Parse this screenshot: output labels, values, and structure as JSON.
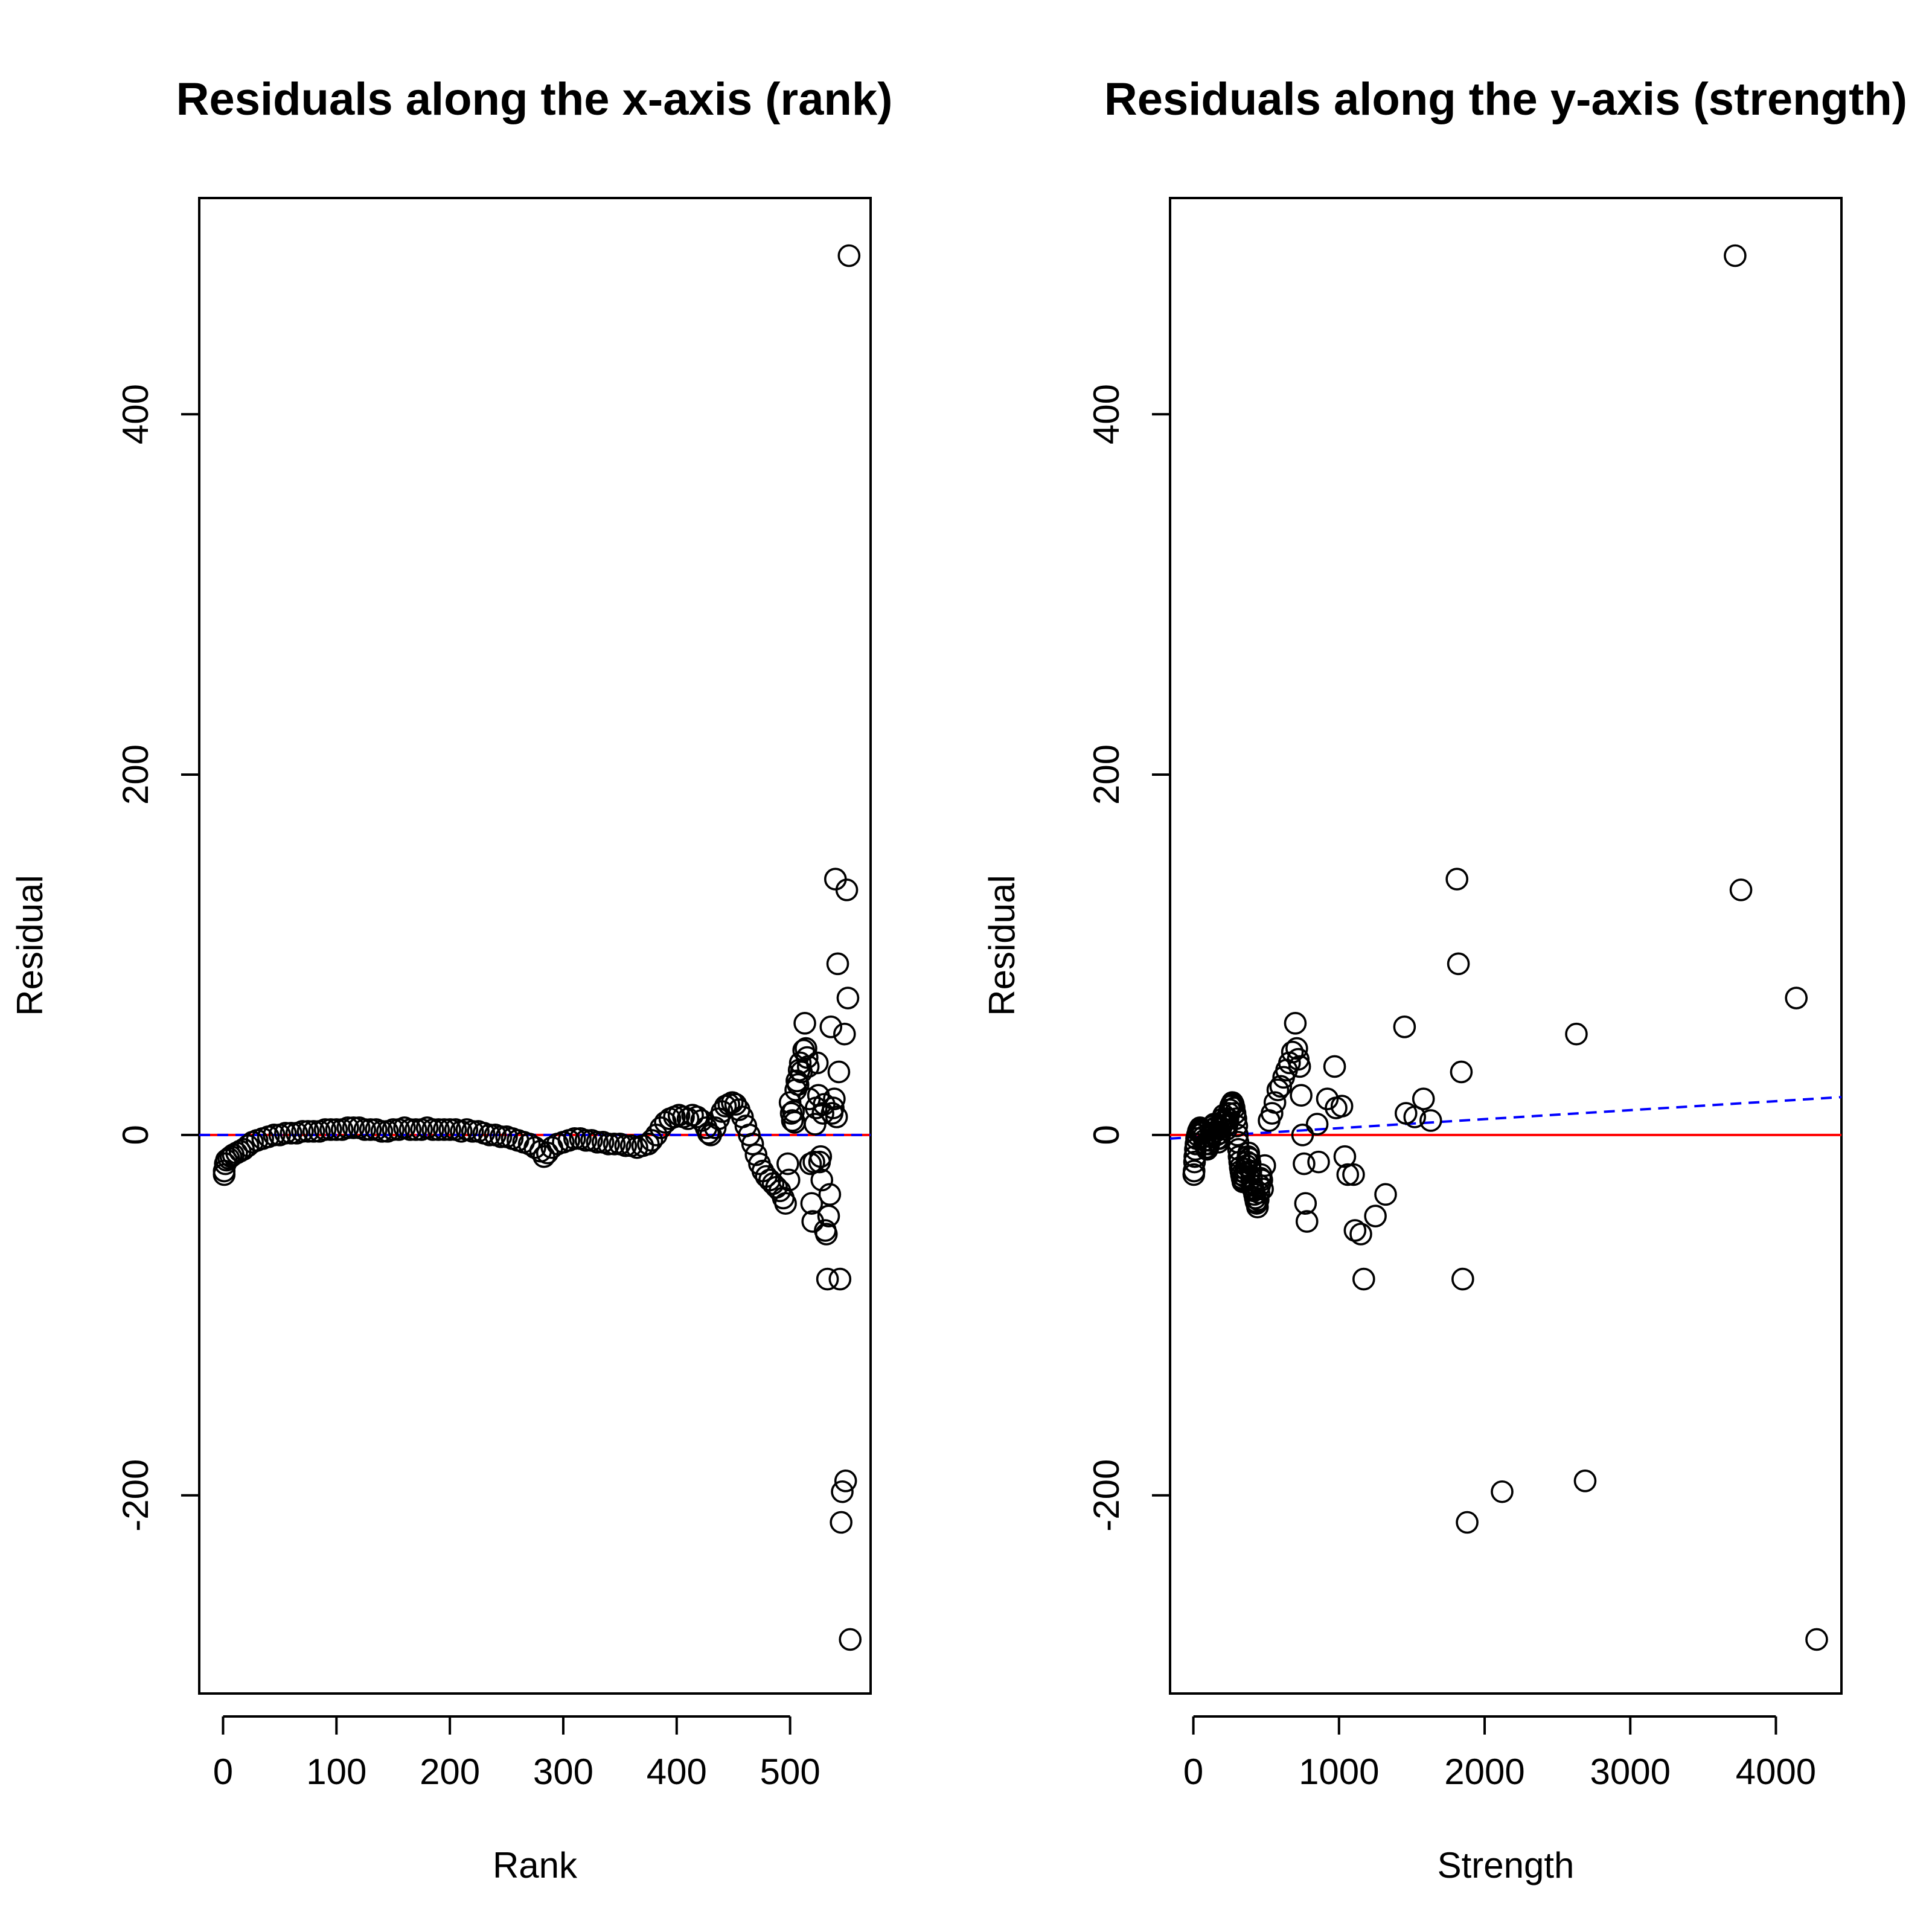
{
  "chart_data": [
    {
      "type": "scatter",
      "title": "Residuals along the x-axis (rank)",
      "xlabel": "Rank",
      "ylabel": "Residual",
      "xlim": [
        -21,
        571
      ],
      "ylim": [
        -310,
        520
      ],
      "xticks": [
        0,
        100,
        200,
        300,
        400,
        500
      ],
      "yticks": [
        -200,
        0,
        200,
        400
      ],
      "grid": false,
      "reference_line": {
        "y": 0,
        "color": "#ff0000",
        "style": "solid"
      },
      "fit_line": {
        "color": "#0000ff",
        "style": "dashed",
        "points": [
          [
            -21,
            0
          ],
          [
            571,
            0
          ]
        ]
      },
      "curve_points": [
        [
          1,
          -22
        ],
        [
          1,
          -20
        ],
        [
          2,
          -16
        ],
        [
          3,
          -14
        ],
        [
          5,
          -13
        ],
        [
          7,
          -12
        ],
        [
          9,
          -11
        ],
        [
          12,
          -10
        ],
        [
          15,
          -9
        ],
        [
          18,
          -8
        ],
        [
          22,
          -6
        ],
        [
          26,
          -4
        ],
        [
          30,
          -3
        ],
        [
          35,
          -2
        ],
        [
          40,
          -1
        ],
        [
          45,
          0
        ],
        [
          50,
          0
        ],
        [
          55,
          1
        ],
        [
          60,
          1
        ],
        [
          65,
          1
        ],
        [
          70,
          2
        ],
        [
          75,
          2
        ],
        [
          80,
          2
        ],
        [
          85,
          2
        ],
        [
          90,
          3
        ],
        [
          95,
          3
        ],
        [
          100,
          3
        ],
        [
          105,
          3
        ],
        [
          110,
          4
        ],
        [
          115,
          4
        ],
        [
          120,
          4
        ],
        [
          125,
          3
        ],
        [
          130,
          3
        ],
        [
          135,
          3
        ],
        [
          140,
          2
        ],
        [
          145,
          2
        ],
        [
          150,
          3
        ],
        [
          155,
          3
        ],
        [
          160,
          4
        ],
        [
          165,
          3
        ],
        [
          170,
          3
        ],
        [
          175,
          3
        ],
        [
          180,
          4
        ],
        [
          185,
          3
        ],
        [
          190,
          3
        ],
        [
          195,
          3
        ],
        [
          200,
          3
        ],
        [
          205,
          3
        ],
        [
          210,
          2
        ],
        [
          215,
          3
        ],
        [
          220,
          2
        ],
        [
          225,
          2
        ],
        [
          230,
          1
        ],
        [
          235,
          0
        ],
        [
          240,
          0
        ],
        [
          245,
          -1
        ],
        [
          250,
          -1
        ],
        [
          255,
          -2
        ],
        [
          260,
          -3
        ],
        [
          265,
          -4
        ],
        [
          270,
          -5
        ],
        [
          275,
          -7
        ],
        [
          280,
          -9
        ],
        [
          283,
          -12
        ],
        [
          286,
          -10
        ],
        [
          290,
          -7
        ],
        [
          295,
          -5
        ],
        [
          300,
          -4
        ],
        [
          305,
          -3
        ],
        [
          310,
          -2
        ],
        [
          315,
          -2
        ],
        [
          320,
          -3
        ],
        [
          325,
          -3
        ],
        [
          330,
          -4
        ],
        [
          335,
          -4
        ],
        [
          340,
          -5
        ],
        [
          345,
          -5
        ],
        [
          350,
          -5
        ],
        [
          355,
          -6
        ],
        [
          360,
          -6
        ],
        [
          365,
          -7
        ],
        [
          370,
          -6
        ],
        [
          375,
          -5
        ],
        [
          378,
          -3
        ],
        [
          382,
          0
        ],
        [
          386,
          4
        ],
        [
          390,
          7
        ],
        [
          394,
          9
        ],
        [
          398,
          10
        ],
        [
          402,
          11
        ],
        [
          406,
          10
        ],
        [
          410,
          9
        ],
        [
          414,
          11
        ],
        [
          418,
          10
        ],
        [
          422,
          8
        ],
        [
          426,
          4
        ],
        [
          428,
          1
        ],
        [
          430,
          0
        ],
        [
          434,
          4
        ],
        [
          437,
          9
        ],
        [
          440,
          13
        ],
        [
          443,
          16
        ],
        [
          446,
          17
        ],
        [
          449,
          18
        ],
        [
          452,
          17
        ],
        [
          455,
          14
        ],
        [
          458,
          10
        ],
        [
          461,
          5
        ],
        [
          464,
          0
        ],
        [
          467,
          -5
        ],
        [
          470,
          -11
        ],
        [
          473,
          -16
        ],
        [
          476,
          -20
        ],
        [
          479,
          -23
        ],
        [
          482,
          -25
        ],
        [
          485,
          -27
        ],
        [
          488,
          -29
        ],
        [
          491,
          -31
        ],
        [
          494,
          -35
        ],
        [
          496,
          -38
        ]
      ],
      "scatter_points": [
        [
          498,
          -16
        ],
        [
          499,
          -25
        ],
        [
          500,
          18
        ],
        [
          501,
          12
        ],
        [
          502,
          8
        ],
        [
          503,
          13
        ],
        [
          504,
          7
        ],
        [
          505,
          25
        ],
        [
          506,
          30
        ],
        [
          507,
          28
        ],
        [
          508,
          36
        ],
        [
          509,
          40
        ],
        [
          510,
          35
        ],
        [
          512,
          47
        ],
        [
          513,
          62
        ],
        [
          514,
          48
        ],
        [
          515,
          43
        ],
        [
          516,
          38
        ],
        [
          517,
          20
        ],
        [
          518,
          -16
        ],
        [
          519,
          -38
        ],
        [
          520,
          -48
        ],
        [
          521,
          -15
        ],
        [
          522,
          6
        ],
        [
          523,
          15
        ],
        [
          524,
          40
        ],
        [
          525,
          22
        ],
        [
          526,
          -15
        ],
        [
          527,
          -12
        ],
        [
          528,
          -25
        ],
        [
          529,
          12
        ],
        [
          530,
          17
        ],
        [
          531,
          -53
        ],
        [
          532,
          -55
        ],
        [
          533,
          -80
        ],
        [
          534,
          -45
        ],
        [
          535,
          -33
        ],
        [
          536,
          60
        ],
        [
          537,
          12
        ],
        [
          538,
          15
        ],
        [
          539,
          20
        ],
        [
          540,
          142
        ],
        [
          541,
          10
        ],
        [
          542,
          95
        ],
        [
          543,
          35
        ],
        [
          544,
          -80
        ],
        [
          545,
          -215
        ],
        [
          546,
          -198
        ],
        [
          548,
          56
        ],
        [
          549,
          -192
        ],
        [
          550,
          136
        ],
        [
          551,
          76
        ],
        [
          552,
          488
        ],
        [
          553,
          -280
        ]
      ]
    },
    {
      "type": "scatter",
      "title": "Residuals along the y-axis (strength)",
      "xlabel": "Strength",
      "ylabel": "Residual",
      "xlim": [
        -160,
        4450
      ],
      "ylim": [
        -310,
        520
      ],
      "xticks": [
        0,
        1000,
        2000,
        3000,
        4000
      ],
      "yticks": [
        -200,
        0,
        200,
        400
      ],
      "grid": false,
      "reference_line": {
        "y": 0,
        "color": "#ff0000",
        "style": "solid"
      },
      "fit_line": {
        "color": "#0000ff",
        "style": "dashed",
        "points": [
          [
            -160,
            -2
          ],
          [
            4450,
            21
          ]
        ]
      },
      "points": [
        [
          3,
          -22
        ],
        [
          5,
          -20
        ],
        [
          8,
          -15
        ],
        [
          10,
          -12
        ],
        [
          14,
          -8
        ],
        [
          18,
          -5
        ],
        [
          22,
          -2
        ],
        [
          28,
          0
        ],
        [
          34,
          2
        ],
        [
          40,
          3
        ],
        [
          46,
          4
        ],
        [
          52,
          3
        ],
        [
          58,
          2
        ],
        [
          64,
          1
        ],
        [
          70,
          -1
        ],
        [
          76,
          -3
        ],
        [
          82,
          -5
        ],
        [
          88,
          -7
        ],
        [
          94,
          -8
        ],
        [
          100,
          -7
        ],
        [
          106,
          -5
        ],
        [
          112,
          -3
        ],
        [
          118,
          -1
        ],
        [
          124,
          1
        ],
        [
          130,
          3
        ],
        [
          136,
          5
        ],
        [
          142,
          6
        ],
        [
          148,
          4
        ],
        [
          154,
          2
        ],
        [
          160,
          0
        ],
        [
          166,
          -2
        ],
        [
          172,
          -4
        ],
        [
          178,
          -2
        ],
        [
          184,
          1
        ],
        [
          190,
          4
        ],
        [
          196,
          7
        ],
        [
          202,
          9
        ],
        [
          208,
          11
        ],
        [
          214,
          8
        ],
        [
          220,
          5
        ],
        [
          226,
          3
        ],
        [
          232,
          6
        ],
        [
          238,
          9
        ],
        [
          244,
          12
        ],
        [
          250,
          14
        ],
        [
          256,
          16
        ],
        [
          262,
          17
        ],
        [
          268,
          18
        ],
        [
          274,
          17
        ],
        [
          280,
          15
        ],
        [
          286,
          12
        ],
        [
          292,
          9
        ],
        [
          298,
          5
        ],
        [
          302,
          0
        ],
        [
          306,
          -4
        ],
        [
          310,
          -8
        ],
        [
          314,
          -12
        ],
        [
          318,
          -15
        ],
        [
          322,
          -18
        ],
        [
          326,
          -20
        ],
        [
          330,
          -22
        ],
        [
          335,
          -24
        ],
        [
          340,
          -26
        ],
        [
          345,
          -25
        ],
        [
          350,
          -23
        ],
        [
          355,
          -21
        ],
        [
          360,
          -19
        ],
        [
          365,
          -17
        ],
        [
          370,
          -15
        ],
        [
          375,
          -12
        ],
        [
          380,
          -10
        ],
        [
          385,
          -13
        ],
        [
          390,
          -16
        ],
        [
          395,
          -20
        ],
        [
          400,
          -24
        ],
        [
          405,
          -28
        ],
        [
          410,
          -30
        ],
        [
          415,
          -31
        ],
        [
          420,
          -33
        ],
        [
          425,
          -35
        ],
        [
          430,
          -37
        ],
        [
          435,
          -38
        ],
        [
          440,
          -40
        ],
        [
          445,
          -36
        ],
        [
          450,
          -32
        ],
        [
          455,
          -28
        ],
        [
          460,
          -24
        ],
        [
          465,
          -22
        ],
        [
          470,
          -25
        ],
        [
          475,
          -30
        ],
        [
          490,
          -17
        ],
        [
          520,
          8
        ],
        [
          540,
          12
        ],
        [
          560,
          18
        ],
        [
          580,
          25
        ],
        [
          600,
          27
        ],
        [
          620,
          32
        ],
        [
          640,
          36
        ],
        [
          660,
          40
        ],
        [
          680,
          46
        ],
        [
          700,
          62
        ],
        [
          710,
          48
        ],
        [
          720,
          42
        ],
        [
          730,
          38
        ],
        [
          740,
          22
        ],
        [
          750,
          0
        ],
        [
          760,
          -16
        ],
        [
          770,
          -38
        ],
        [
          780,
          -48
        ],
        [
          850,
          6
        ],
        [
          860,
          -15
        ],
        [
          920,
          20
        ],
        [
          970,
          38
        ],
        [
          980,
          15
        ],
        [
          1020,
          16
        ],
        [
          1040,
          -12
        ],
        [
          1060,
          -22
        ],
        [
          1100,
          -22
        ],
        [
          1110,
          -53
        ],
        [
          1150,
          -55
        ],
        [
          1170,
          -80
        ],
        [
          1250,
          -45
        ],
        [
          1320,
          -33
        ],
        [
          1450,
          60
        ],
        [
          1460,
          12
        ],
        [
          1520,
          10
        ],
        [
          1580,
          20
        ],
        [
          1630,
          8
        ],
        [
          1810,
          142
        ],
        [
          1820,
          95
        ],
        [
          1840,
          35
        ],
        [
          1850,
          -80
        ],
        [
          1880,
          -215
        ],
        [
          2120,
          -198
        ],
        [
          2630,
          56
        ],
        [
          2690,
          -192
        ],
        [
          3720,
          488
        ],
        [
          3760,
          136
        ],
        [
          4140,
          76
        ],
        [
          4280,
          -280
        ]
      ]
    }
  ]
}
